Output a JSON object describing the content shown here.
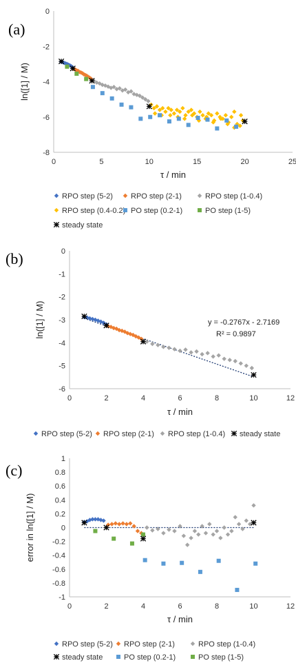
{
  "chart_data": [
    {
      "panel_label": "(a)",
      "type": "scatter",
      "xlabel": "τ / min",
      "ylabel": "ln([1] / M)",
      "xlim": [
        0,
        25
      ],
      "ylim": [
        -8,
        0
      ],
      "xticks": [
        0,
        5,
        10,
        15,
        20,
        25
      ],
      "yticks": [
        0,
        -2,
        -4,
        -6,
        -8
      ],
      "grid": false,
      "legend_position": "bottom",
      "series": [
        {
          "name": "RPO step (5-2)",
          "color": "#4472C4",
          "marker": "diamond",
          "x": [
            0.8,
            0.95,
            1.1,
            1.25,
            1.4,
            1.55,
            1.7,
            1.85,
            2.0
          ],
          "y": [
            -2.88,
            -2.9,
            -2.94,
            -2.97,
            -3.0,
            -3.04,
            -3.08,
            -3.13,
            -3.2
          ]
        },
        {
          "name": "RPO step (2-1)",
          "color": "#ED7D31",
          "marker": "diamond",
          "x": [
            2.1,
            2.25,
            2.4,
            2.55,
            2.7,
            2.85,
            3.0,
            3.15,
            3.3,
            3.45,
            3.6,
            3.75,
            3.9
          ],
          "y": [
            -3.28,
            -3.31,
            -3.36,
            -3.39,
            -3.45,
            -3.48,
            -3.52,
            -3.58,
            -3.62,
            -3.66,
            -3.72,
            -3.77,
            -3.83
          ]
        },
        {
          "name": "RPO step (1-0.4)",
          "color": "#A5A5A5",
          "marker": "diamond",
          "x": [
            4.2,
            4.5,
            4.8,
            5.1,
            5.4,
            5.7,
            6.0,
            6.3,
            6.6,
            6.9,
            7.2,
            7.5,
            7.8,
            8.1,
            8.4,
            8.7,
            9.0,
            9.3,
            9.6,
            9.9
          ],
          "y": [
            -3.95,
            -4.05,
            -4.1,
            -4.18,
            -4.22,
            -4.28,
            -4.35,
            -4.3,
            -4.42,
            -4.38,
            -4.5,
            -4.45,
            -4.6,
            -4.55,
            -4.7,
            -4.75,
            -4.8,
            -4.9,
            -5.0,
            -5.1
          ]
        },
        {
          "name": "RPO step (0.4-0.2)",
          "color": "#FFC000",
          "marker": "diamond",
          "x": [
            10.2,
            10.5,
            10.8,
            11.1,
            11.4,
            11.7,
            12.0,
            12.3,
            12.6,
            12.9,
            13.2,
            13.5,
            13.8,
            14.1,
            14.4,
            14.7,
            15.0,
            15.3,
            15.6,
            15.9,
            16.2,
            16.5,
            16.8,
            17.1,
            17.4,
            17.7,
            18.0,
            18.3,
            18.6,
            18.9,
            19.2,
            19.5,
            19.8,
            10.6,
            11.3,
            12.2,
            13.0,
            13.7,
            14.5,
            15.2,
            16.0,
            16.7,
            17.5,
            18.2,
            18.9,
            19.6
          ],
          "y": [
            -5.3,
            -5.5,
            -5.4,
            -5.6,
            -5.5,
            -5.7,
            -5.5,
            -5.6,
            -5.8,
            -5.6,
            -5.7,
            -5.5,
            -5.9,
            -5.7,
            -5.6,
            -5.8,
            -6.0,
            -5.7,
            -5.9,
            -6.1,
            -5.8,
            -5.9,
            -6.2,
            -5.8,
            -6.0,
            -6.1,
            -5.9,
            -6.3,
            -6.0,
            -5.7,
            -6.4,
            -6.5,
            -6.2,
            -5.8,
            -5.9,
            -5.9,
            -6.0,
            -6.1,
            -5.9,
            -6.2,
            -6.0,
            -6.3,
            -6.1,
            -6.4,
            -6.6,
            -5.9
          ]
        },
        {
          "name": "PO step (0.2-1)",
          "color": "#5B9BD5",
          "marker": "square",
          "x": [
            4.1,
            5.1,
            6.1,
            7.1,
            8.1,
            9.1,
            10.1,
            11.1,
            12.1,
            13.1,
            14.1,
            15.1,
            16.1,
            17.1,
            18.1,
            19.1
          ],
          "y": [
            -4.3,
            -4.65,
            -4.95,
            -5.3,
            -5.45,
            -6.1,
            -6.0,
            -5.9,
            -6.25,
            -6.1,
            -6.45,
            -6.05,
            -6.15,
            -6.65,
            -6.2,
            -6.55
          ]
        },
        {
          "name": "PO step (1-5)",
          "color": "#70AD47",
          "marker": "square",
          "x": [
            1.4,
            2.4,
            3.4
          ],
          "y": [
            -3.15,
            -3.55,
            -3.85
          ]
        },
        {
          "name": "steady state",
          "color": "#000000",
          "marker": "asterisk",
          "x": [
            0.8,
            2.0,
            4.0,
            10.0,
            20.0
          ],
          "y": [
            -2.85,
            -3.25,
            -3.95,
            -5.4,
            -6.25
          ]
        }
      ]
    },
    {
      "panel_label": "(b)",
      "type": "scatter",
      "xlabel": "τ / min",
      "ylabel": "ln([1] / M)",
      "xlim": [
        0,
        12
      ],
      "ylim": [
        -6,
        0
      ],
      "xticks": [
        0,
        2,
        4,
        6,
        8,
        10,
        12
      ],
      "yticks": [
        0,
        -1,
        -2,
        -3,
        -4,
        -5,
        -6
      ],
      "grid": false,
      "legend_position": "bottom",
      "trendline": {
        "slope": -0.2767,
        "intercept": -2.7169,
        "x_range": [
          0.8,
          10
        ],
        "equation": "y = -0.2767x - 2.7169",
        "r2": "R² = 0.9897",
        "color": "#1F3B73"
      },
      "series": [
        {
          "name": "RPO step (5-2)",
          "color": "#4472C4",
          "marker": "diamond",
          "x": [
            0.8,
            0.95,
            1.1,
            1.25,
            1.4,
            1.55,
            1.7,
            1.85,
            2.0
          ],
          "y": [
            -2.88,
            -2.9,
            -2.94,
            -2.97,
            -3.0,
            -3.04,
            -3.08,
            -3.13,
            -3.2
          ]
        },
        {
          "name": "RPO step (2-1)",
          "color": "#ED7D31",
          "marker": "diamond",
          "x": [
            2.1,
            2.25,
            2.4,
            2.55,
            2.7,
            2.85,
            3.0,
            3.15,
            3.3,
            3.45,
            3.6,
            3.75,
            3.9
          ],
          "y": [
            -3.28,
            -3.31,
            -3.36,
            -3.39,
            -3.45,
            -3.48,
            -3.52,
            -3.58,
            -3.62,
            -3.66,
            -3.72,
            -3.77,
            -3.83
          ]
        },
        {
          "name": "RPO step (1-0.4)",
          "color": "#A5A5A5",
          "marker": "diamond",
          "x": [
            4.2,
            4.5,
            4.8,
            5.1,
            5.4,
            5.7,
            6.0,
            6.3,
            6.6,
            6.9,
            7.2,
            7.5,
            7.8,
            8.1,
            8.4,
            8.7,
            9.0,
            9.3,
            9.6,
            9.9
          ],
          "y": [
            -3.95,
            -4.05,
            -4.1,
            -4.18,
            -4.22,
            -4.28,
            -4.35,
            -4.3,
            -4.42,
            -4.38,
            -4.5,
            -4.45,
            -4.6,
            -4.55,
            -4.7,
            -4.75,
            -4.8,
            -4.9,
            -5.0,
            -5.1
          ]
        },
        {
          "name": "steady state",
          "color": "#000000",
          "marker": "asterisk",
          "x": [
            0.8,
            2.0,
            4.0,
            10.0
          ],
          "y": [
            -2.85,
            -3.25,
            -3.95,
            -5.4
          ]
        }
      ]
    },
    {
      "panel_label": "(c)",
      "type": "scatter",
      "xlabel": "τ / min",
      "ylabel": "error in ln([1] / M)",
      "xlim": [
        0,
        12
      ],
      "ylim": [
        -1,
        1
      ],
      "xticks": [
        0,
        2,
        4,
        6,
        8,
        10,
        12
      ],
      "yticks": [
        1,
        0.8,
        0.6,
        0.4,
        0.2,
        0,
        -0.2,
        -0.4,
        -0.6,
        -0.8,
        -1
      ],
      "grid": false,
      "legend_position": "bottom",
      "zero_line": {
        "color": "#1F3B73"
      },
      "series": [
        {
          "name": "RPO step (5-2)",
          "color": "#4472C4",
          "marker": "diamond",
          "x": [
            0.8,
            0.95,
            1.1,
            1.25,
            1.4,
            1.55,
            1.7,
            1.85
          ],
          "y": [
            0.08,
            0.09,
            0.11,
            0.12,
            0.12,
            0.12,
            0.11,
            0.1
          ]
        },
        {
          "name": "RPO step (2-1)",
          "color": "#ED7D31",
          "marker": "diamond",
          "x": [
            2.1,
            2.3,
            2.5,
            2.7,
            2.9,
            3.1,
            3.3,
            3.5,
            3.7,
            3.9
          ],
          "y": [
            0.04,
            0.05,
            0.06,
            0.05,
            0.06,
            0.05,
            0.06,
            0.02,
            -0.05,
            -0.08
          ]
        },
        {
          "name": "RPO step (1-0.4)",
          "color": "#A5A5A5",
          "marker": "diamond",
          "x": [
            4.2,
            4.5,
            4.8,
            5.1,
            5.4,
            5.7,
            6.0,
            6.2,
            6.4,
            6.6,
            6.8,
            7.0,
            7.2,
            7.4,
            7.6,
            7.8,
            8.0,
            8.2,
            8.4,
            8.6,
            8.8,
            9.0,
            9.2,
            9.4,
            9.6,
            9.8,
            10.0
          ],
          "y": [
            0.0,
            -0.04,
            -0.02,
            -0.08,
            -0.03,
            -0.05,
            0.02,
            -0.12,
            -0.25,
            -0.15,
            -0.05,
            -0.1,
            0.02,
            -0.08,
            0.05,
            -0.1,
            -0.05,
            -0.15,
            0.0,
            -0.1,
            -0.05,
            0.15,
            0.05,
            -0.02,
            0.1,
            0.05,
            0.32
          ]
        },
        {
          "name": "PO step (0.2-1)",
          "color": "#5B9BD5",
          "marker": "square",
          "x": [
            4.1,
            5.1,
            6.1,
            7.1,
            8.1,
            9.1,
            10.1
          ],
          "y": [
            -0.47,
            -0.52,
            -0.51,
            -0.64,
            -0.48,
            -0.9,
            -0.52
          ]
        },
        {
          "name": "PO step (1-5)",
          "color": "#70AD47",
          "marker": "square",
          "x": [
            1.4,
            2.4,
            3.4,
            4.0
          ],
          "y": [
            -0.05,
            -0.16,
            -0.23,
            -0.1
          ]
        },
        {
          "name": "steady state",
          "color": "#000000",
          "marker": "asterisk",
          "x": [
            0.8,
            2.0,
            4.0,
            10.0
          ],
          "y": [
            0.07,
            0.0,
            -0.16,
            0.07
          ]
        }
      ]
    }
  ]
}
